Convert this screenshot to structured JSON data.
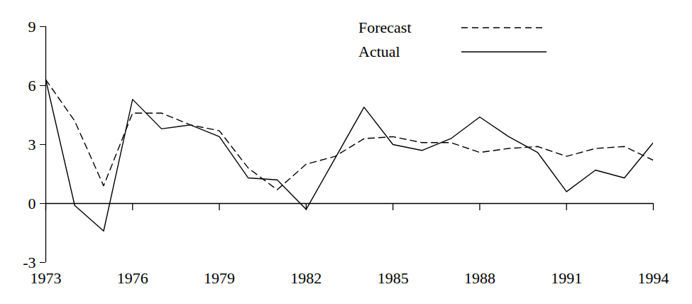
{
  "chart_data": {
    "type": "line",
    "x": [
      1973,
      1974,
      1975,
      1976,
      1977,
      1978,
      1979,
      1980,
      1981,
      1982,
      1983,
      1984,
      1985,
      1986,
      1987,
      1988,
      1989,
      1990,
      1991,
      1992,
      1993,
      1994
    ],
    "series": [
      {
        "name": "Forecast",
        "color": "#000000",
        "line_style": "dashed",
        "values": [
          6.3,
          4.2,
          0.9,
          4.6,
          4.6,
          4.0,
          3.7,
          1.8,
          0.7,
          2.0,
          2.4,
          3.3,
          3.4,
          3.1,
          3.1,
          2.6,
          2.8,
          2.9,
          2.4,
          2.8,
          2.9,
          2.2
        ]
      },
      {
        "name": "Actual",
        "color": "#000000",
        "line_style": "solid",
        "values": [
          6.3,
          -0.1,
          -1.4,
          5.3,
          3.8,
          4.0,
          3.4,
          1.3,
          1.2,
          -0.3,
          2.3,
          4.9,
          3.0,
          2.7,
          3.3,
          4.4,
          3.4,
          2.6,
          0.6,
          1.7,
          1.3,
          3.1
        ]
      }
    ],
    "xlim": [
      1973,
      1994
    ],
    "xticks": [
      1973,
      1976,
      1979,
      1982,
      1985,
      1988,
      1991,
      1994
    ],
    "ylim": [
      -3,
      9
    ],
    "yticks": [
      -3,
      0,
      3,
      6,
      9
    ],
    "legend": "upper right",
    "grid": false
  }
}
